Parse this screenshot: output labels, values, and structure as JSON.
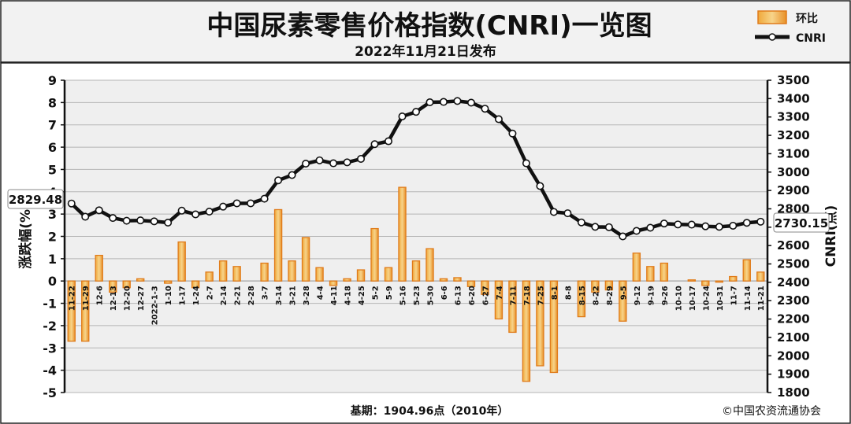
{
  "header": {
    "title": "中国尿素零售价格指数(CNRI)一览图",
    "subtitle": "2022年11月21日发布"
  },
  "legend": {
    "bar_label": "环比",
    "line_label": "CNRI"
  },
  "footer": {
    "base_label": "基期：1904.96点（2010年）",
    "copyright": "©中国农资流通协会"
  },
  "colors": {
    "bar_fill": "#f2c36b",
    "bar_edge": "#e07b1a",
    "line": "#111111",
    "plot_bg": "#efefef",
    "grid": "#b5b5b5"
  },
  "chart_data": {
    "type": "bar",
    "categories": [
      "11-22",
      "11-29",
      "12-6",
      "12-13",
      "12-20",
      "12-27",
      "2022-1-3",
      "1-10",
      "1-17",
      "1-24",
      "2-7",
      "2-14",
      "2-21",
      "2-28",
      "3-7",
      "3-14",
      "3-21",
      "3-28",
      "4-4",
      "4-11",
      "4-18",
      "4-25",
      "5-2",
      "5-9",
      "5-16",
      "5-23",
      "5-30",
      "6-6",
      "6-13",
      "6-20",
      "6-27",
      "7-4",
      "7-11",
      "7-18",
      "7-25",
      "8-1",
      "8-8",
      "8-15",
      "8-22",
      "8-29",
      "9-5",
      "9-12",
      "9-19",
      "9-26",
      "10-10",
      "10-17",
      "10-24",
      "10-31",
      "11-7",
      "11-14",
      "11-21"
    ],
    "series": [
      {
        "name": "环比",
        "type": "bar",
        "axis": "left",
        "values": [
          -2.7,
          -2.7,
          1.15,
          -0.5,
          -0.3,
          0.1,
          0.0,
          -0.1,
          1.75,
          -0.3,
          0.4,
          0.9,
          0.65,
          0.0,
          0.8,
          3.2,
          0.9,
          1.95,
          0.6,
          -0.2,
          0.1,
          0.5,
          2.35,
          0.6,
          4.2,
          0.9,
          1.45,
          0.1,
          0.15,
          -0.25,
          -0.6,
          -1.7,
          -2.3,
          -4.5,
          -3.8,
          -4.1,
          0.0,
          -1.6,
          -0.5,
          -0.4,
          -1.8,
          1.25,
          0.65,
          0.8,
          0.0,
          0.05,
          -0.2,
          -0.05,
          0.2,
          0.95,
          0.4
        ]
      },
      {
        "name": "CNRI",
        "type": "line",
        "axis": "right",
        "values": [
          2829,
          2757,
          2792,
          2750,
          2735,
          2737,
          2732,
          2725,
          2790,
          2770,
          2785,
          2812,
          2830,
          2830,
          2855,
          2955,
          2984,
          3046,
          3064,
          3048,
          3053,
          3072,
          3152,
          3168,
          3303,
          3328,
          3380,
          3382,
          3387,
          3378,
          3345,
          3288,
          3210,
          3048,
          2924,
          2783,
          2776,
          2726,
          2702,
          2700,
          2650,
          2680,
          2697,
          2720,
          2715,
          2714,
          2705,
          2702,
          2708,
          2724,
          2730
        ]
      }
    ],
    "left_axis": {
      "label": "涨跌幅(%)",
      "min": -5,
      "max": 9,
      "ticks": [
        "-5",
        "-4",
        "-3",
        "-2",
        "-1",
        "0",
        "1",
        "2",
        "3",
        "4",
        "5",
        "6",
        "7",
        "8",
        "9"
      ]
    },
    "right_axis": {
      "label": "CNRI(点)",
      "min": 1800,
      "max": 3500,
      "ticks": [
        "1800",
        "1900",
        "2000",
        "2100",
        "2200",
        "2300",
        "2400",
        "2500",
        "2600",
        "2700",
        "2800",
        "2900",
        "3000",
        "3100",
        "3200",
        "3300",
        "3400",
        "3500"
      ]
    },
    "annotations": {
      "start_value": "2829.48",
      "end_value": "2730.15"
    },
    "grid": true,
    "legend_position": "top-right"
  }
}
